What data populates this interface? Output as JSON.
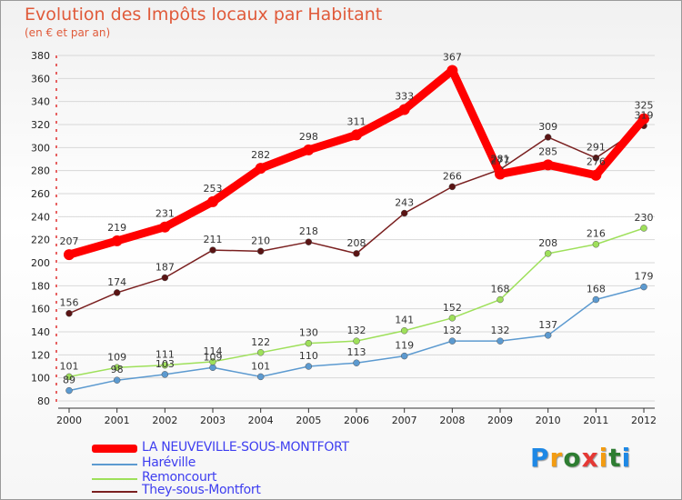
{
  "header": {
    "title": "Evolution des Impôts locaux par Habitant",
    "subtitle": "(en € et par an)"
  },
  "colors": {
    "LA NEUVEVILLE-SOUS-MONTFORT": "#ff0000",
    "Haréville": "#5c9ad0",
    "Remoncourt": "#9ee05a",
    "They-sous-Montfort": "#7a2020"
  },
  "logo": {
    "text": "Proxiti"
  },
  "chart_data": {
    "type": "line",
    "x": [
      "2000",
      "2001",
      "2002",
      "2003",
      "2004",
      "2005",
      "2006",
      "2007",
      "2008",
      "2009",
      "2010",
      "2011",
      "2012"
    ],
    "ylim": [
      80,
      380
    ],
    "yticks": [
      80,
      100,
      120,
      140,
      160,
      180,
      200,
      220,
      240,
      260,
      280,
      300,
      320,
      340,
      360,
      380
    ],
    "grid": true,
    "legend_position": "bottom-left",
    "series": [
      {
        "name": "LA NEUVEVILLE-SOUS-MONTFORT",
        "values": [
          207,
          219,
          231,
          253,
          282,
          298,
          311,
          333,
          367,
          277,
          285,
          276,
          325
        ]
      },
      {
        "name": "Haréville",
        "values": [
          89,
          98,
          103,
          109,
          101,
          110,
          113,
          119,
          132,
          132,
          137,
          168,
          179
        ]
      },
      {
        "name": "Remoncourt",
        "values": [
          101,
          109,
          111,
          114,
          122,
          130,
          132,
          141,
          152,
          168,
          208,
          216,
          230
        ]
      },
      {
        "name": "They-sous-Montfort",
        "values": [
          156,
          174,
          187,
          211,
          210,
          218,
          208,
          243,
          266,
          281,
          309,
          291,
          319
        ]
      }
    ]
  }
}
